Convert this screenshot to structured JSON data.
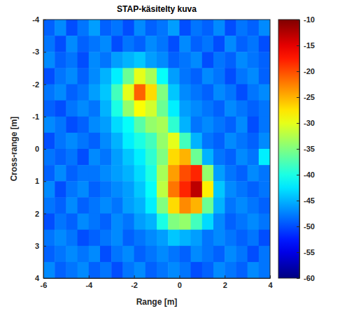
{
  "chart_data": {
    "type": "heatmap",
    "title": "STAP-käsitelty kuva",
    "x_label": "Range [m]",
    "y_label": "Cross-range [m]",
    "xlim": [
      -6,
      4
    ],
    "ylim": [
      -4,
      4
    ],
    "xticks": [
      -6,
      -4,
      -2,
      0,
      2,
      4
    ],
    "yticks": [
      -4,
      -3,
      -2,
      -1,
      0,
      1,
      2,
      3,
      4
    ],
    "x": [
      -5.75,
      -5.25,
      -4.75,
      -4.25,
      -3.75,
      -3.25,
      -2.75,
      -2.25,
      -1.75,
      -1.25,
      -0.75,
      -0.25,
      0.25,
      0.75,
      1.25,
      1.75,
      2.25,
      2.75,
      3.25,
      3.75
    ],
    "y": [
      -3.75,
      -3.25,
      -2.75,
      -2.25,
      -1.75,
      -1.25,
      -0.75,
      -0.25,
      0.25,
      0.75,
      1.25,
      1.75,
      2.25,
      2.75,
      3.25,
      3.75
    ],
    "values": [
      [
        -49,
        -47,
        -50,
        -48,
        -46,
        -49,
        -48,
        -50,
        -47,
        -49,
        -48,
        -46,
        -50,
        -48,
        -49,
        -47,
        -50,
        -48,
        -49,
        -47
      ],
      [
        -48,
        -50,
        -47,
        -49,
        -48,
        -47,
        -50,
        -48,
        -49,
        -47,
        -48,
        -50,
        -47,
        -49,
        -48,
        -50,
        -47,
        -49,
        -48,
        -50
      ],
      [
        -47,
        -49,
        -48,
        -50,
        -47,
        -48,
        -46,
        -45,
        -44,
        -46,
        -47,
        -49,
        -48,
        -47,
        -50,
        -48,
        -49,
        -47,
        -48,
        -49
      ],
      [
        -50,
        -48,
        -47,
        -49,
        -47,
        -45,
        -42,
        -36,
        -30,
        -33,
        -41,
        -46,
        -48,
        -49,
        -47,
        -48,
        -50,
        -48,
        -47,
        -49
      ],
      [
        -48,
        -47,
        -49,
        -48,
        -46,
        -44,
        -38,
        -30,
        -21,
        -27,
        -35,
        -44,
        -47,
        -48,
        -49,
        -47,
        -48,
        -50,
        -48,
        -47
      ],
      [
        -49,
        -50,
        -48,
        -47,
        -48,
        -45,
        -40,
        -34,
        -29,
        -31,
        -36,
        -42,
        -46,
        -47,
        -48,
        -49,
        -47,
        -48,
        -49,
        -48
      ],
      [
        -47,
        -48,
        -50,
        -49,
        -47,
        -46,
        -43,
        -41,
        -37,
        -34,
        -33,
        -39,
        -45,
        -48,
        -47,
        -48,
        -49,
        -47,
        -50,
        -48
      ],
      [
        -50,
        -48,
        -47,
        -48,
        -49,
        -47,
        -45,
        -42,
        -40,
        -38,
        -34,
        -30,
        -38,
        -45,
        -48,
        -49,
        -47,
        -48,
        -49,
        -47
      ],
      [
        -48,
        -49,
        -48,
        -50,
        -47,
        -48,
        -46,
        -44,
        -42,
        -39,
        -35,
        -27,
        -25,
        -36,
        -45,
        -48,
        -49,
        -47,
        -48,
        -42
      ],
      [
        -49,
        -47,
        -49,
        -48,
        -48,
        -47,
        -46,
        -45,
        -43,
        -40,
        -33,
        -24,
        -20,
        -18,
        -34,
        -46,
        -48,
        -49,
        -47,
        -48
      ],
      [
        -47,
        -50,
        -48,
        -47,
        -49,
        -48,
        -47,
        -46,
        -44,
        -41,
        -32,
        -22,
        -18,
        -13,
        -28,
        -44,
        -47,
        -48,
        -49,
        -48
      ],
      [
        -48,
        -49,
        -47,
        -49,
        -48,
        -47,
        -48,
        -46,
        -45,
        -42,
        -35,
        -27,
        -23,
        -25,
        -36,
        -45,
        -48,
        -47,
        -48,
        -49
      ],
      [
        -50,
        -48,
        -49,
        -47,
        -48,
        -49,
        -47,
        -48,
        -46,
        -45,
        -40,
        -35,
        -34,
        -38,
        -43,
        -47,
        -49,
        -48,
        -47,
        -48
      ],
      [
        -48,
        -47,
        -48,
        -50,
        -49,
        -48,
        -47,
        -49,
        -48,
        -47,
        -46,
        -44,
        -45,
        -46,
        -48,
        -47,
        -48,
        -49,
        -48,
        -50
      ],
      [
        -49,
        -48,
        -47,
        -48,
        -47,
        -50,
        -48,
        -47,
        -49,
        -48,
        -47,
        -48,
        -49,
        -47,
        -48,
        -49,
        -47,
        -48,
        -50,
        -48
      ],
      [
        -47,
        -49,
        -48,
        -47,
        -49,
        -48,
        -50,
        -48,
        -47,
        -49,
        -48,
        -47,
        -48,
        -50,
        -49,
        -47,
        -48,
        -49,
        -47,
        -48
      ]
    ],
    "colorbar": {
      "range": [
        -60,
        -10
      ],
      "ticks": [
        -10,
        -15,
        -20,
        -25,
        -30,
        -35,
        -40,
        -45,
        -50,
        -55,
        -60
      ]
    }
  }
}
